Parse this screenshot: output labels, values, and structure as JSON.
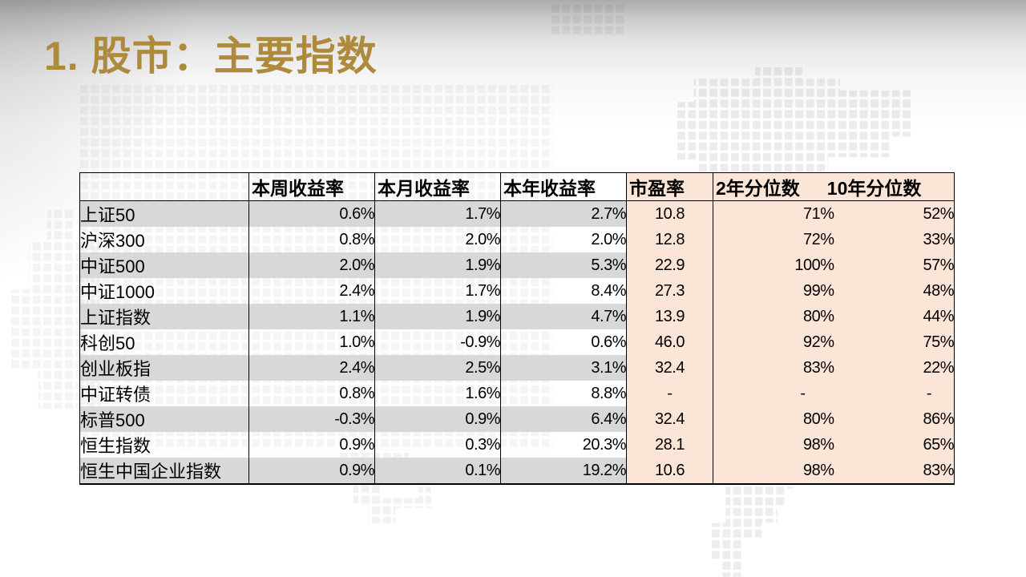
{
  "slide": {
    "title": "1. 股市：主要指数"
  },
  "table": {
    "columns": [
      "",
      "本周收益率",
      "本月收益率",
      "本年收益率",
      "市盈率",
      "2年分位数",
      "10年分位数"
    ],
    "rows": [
      {
        "name": "上证50",
        "week": "0.6%",
        "month": "1.7%",
        "year": "2.7%",
        "pe": "10.8",
        "pct2y": "71%",
        "pct10y": "52%"
      },
      {
        "name": "沪深300",
        "week": "0.8%",
        "month": "2.0%",
        "year": "2.0%",
        "pe": "12.8",
        "pct2y": "72%",
        "pct10y": "33%"
      },
      {
        "name": "中证500",
        "week": "2.0%",
        "month": "1.9%",
        "year": "5.3%",
        "pe": "22.9",
        "pct2y": "100%",
        "pct10y": "57%"
      },
      {
        "name": "中证1000",
        "week": "2.4%",
        "month": "1.7%",
        "year": "8.4%",
        "pe": "27.3",
        "pct2y": "99%",
        "pct10y": "48%"
      },
      {
        "name": "上证指数",
        "week": "1.1%",
        "month": "1.9%",
        "year": "4.7%",
        "pe": "13.9",
        "pct2y": "80%",
        "pct10y": "44%"
      },
      {
        "name": "科创50",
        "week": "1.0%",
        "month": "-0.9%",
        "year": "0.6%",
        "pe": "46.0",
        "pct2y": "92%",
        "pct10y": "75%"
      },
      {
        "name": "创业板指",
        "week": "2.4%",
        "month": "2.5%",
        "year": "3.1%",
        "pe": "32.4",
        "pct2y": "83%",
        "pct10y": "22%"
      },
      {
        "name": "中证转债",
        "week": "0.8%",
        "month": "1.6%",
        "year": "8.8%",
        "pe": "-",
        "pct2y": "-",
        "pct10y": "-"
      },
      {
        "name": "标普500",
        "week": "-0.3%",
        "month": "0.9%",
        "year": "6.4%",
        "pe": "32.4",
        "pct2y": "80%",
        "pct10y": "86%"
      },
      {
        "name": "恒生指数",
        "week": "0.9%",
        "month": "0.3%",
        "year": "20.3%",
        "pe": "28.1",
        "pct2y": "98%",
        "pct10y": "65%"
      },
      {
        "name": "恒生中国企业指数",
        "week": "0.9%",
        "month": "0.1%",
        "year": "19.2%",
        "pe": "10.6",
        "pct2y": "98%",
        "pct10y": "83%"
      }
    ]
  },
  "colors": {
    "title_gold": "#AE8A3C",
    "row_stripe_gray": "#D8D8D8",
    "pe_percentile_peach": "#FBE5D6",
    "table_border": "#000000"
  }
}
